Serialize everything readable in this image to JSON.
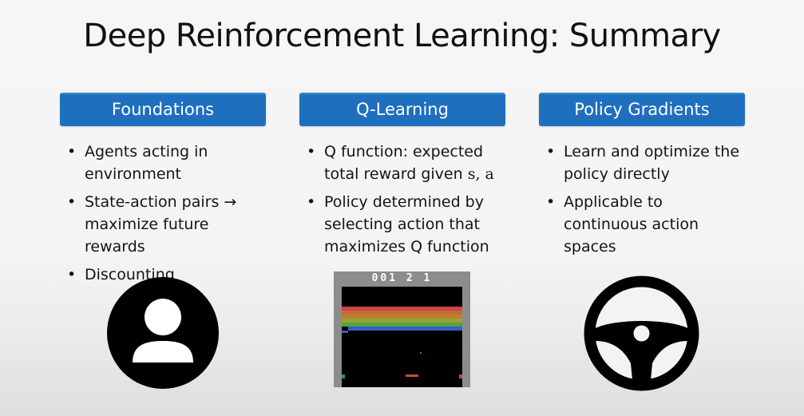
{
  "slide": {
    "title": "Deep Reinforcement Learning: Summary"
  },
  "columns": [
    {
      "header": "Foundations",
      "bullets": [
        "Agents acting in environment",
        "State-action pairs → maximize future rewards",
        "Discounting"
      ],
      "image": "person-icon"
    },
    {
      "header": "Q-Learning",
      "bullets": [
        "Q function: expected total reward given",
        "Policy determined by selecting action that maximizes Q function"
      ],
      "bullet1_vars": "s, a",
      "image": "breakout-game-screenshot",
      "game": {
        "score": "001 2 1"
      }
    },
    {
      "header": "Policy Gradients",
      "bullets": [
        "Learn and optimize the policy directly",
        "Applicable to continuous action spaces"
      ],
      "image": "steering-wheel-icon"
    }
  ],
  "colors": {
    "header_bg": "#1f6fbf",
    "header_text": "#ffffff",
    "icon": "#000000",
    "game_border": "#8c8c8c",
    "brick_rows": [
      "#c8483f",
      "#c56b3a",
      "#b6832f",
      "#a1a02c",
      "#4ea648",
      "#3d5cc7"
    ]
  }
}
